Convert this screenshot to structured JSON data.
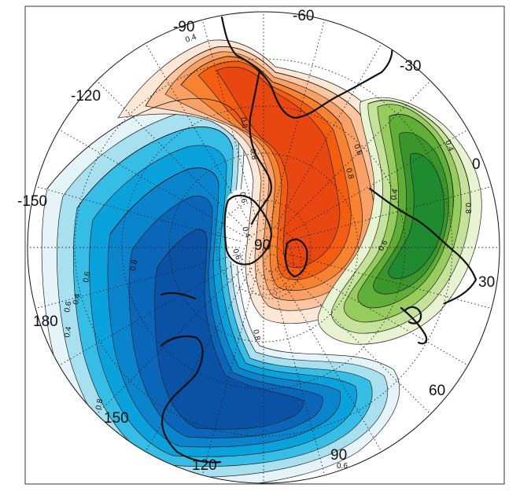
{
  "map": {
    "projection": "polar-stereographic",
    "longitude_labels": [
      {
        "text": "-90"
      },
      {
        "text": "-60"
      },
      {
        "text": "-30"
      },
      {
        "text": "0"
      },
      {
        "text": "30"
      },
      {
        "text": "60"
      },
      {
        "text": "90"
      },
      {
        "text": "120"
      },
      {
        "text": "150"
      },
      {
        "text": "180"
      },
      {
        "text": "-150"
      },
      {
        "text": "-120"
      }
    ],
    "pole_label": "90",
    "contour_labels": [
      {
        "text": "0.4"
      },
      {
        "text": "0.8"
      },
      {
        "text": "0.8"
      },
      {
        "text": "0.6"
      },
      {
        "text": "0.8"
      },
      {
        "text": "0.6"
      },
      {
        "text": "0.4"
      },
      {
        "text": "0.4"
      },
      {
        "text": "0.8"
      },
      {
        "text": "0.6"
      },
      {
        "text": "0.8"
      },
      {
        "text": "0.6"
      },
      {
        "text": "0.8"
      },
      {
        "text": "0.6"
      },
      {
        "text": "0.4"
      },
      {
        "text": "0.4"
      },
      {
        "text": "0.8"
      },
      {
        "text": "0.6"
      },
      {
        "text": "0.4"
      },
      {
        "text": "0.6"
      }
    ],
    "patterns": [
      {
        "name": "orange",
        "sign": "positive",
        "colors": [
          "#fde7d6",
          "#fbc69f",
          "#f9a066",
          "#f7822f",
          "#f45d10",
          "#e94710"
        ]
      },
      {
        "name": "green",
        "sign": "positive",
        "colors": [
          "#e8f3d2",
          "#c5e29a",
          "#95cc5c",
          "#5fae38",
          "#3a962a",
          "#208a30"
        ]
      },
      {
        "name": "blue",
        "sign": "positive",
        "colors": [
          "#e4f4f9",
          "#a8e0f0",
          "#35bde6",
          "#0aa2dc",
          "#0a84cc",
          "#0a66b8",
          "#0a52a6"
        ]
      }
    ]
  }
}
